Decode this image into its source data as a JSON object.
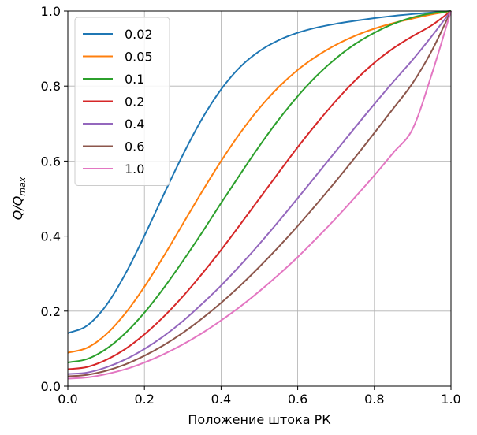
{
  "chart_data": {
    "type": "line",
    "title": "",
    "xlabel": "Положение штока РК",
    "ylabel": "Q/Q",
    "ylabel_subscript": "max",
    "xlim": [
      0.0,
      1.0
    ],
    "ylim": [
      0.0,
      1.0
    ],
    "xticks": [
      0.0,
      0.2,
      0.4,
      0.6,
      0.8,
      1.0
    ],
    "xtick_labels": [
      "0.0",
      "0.2",
      "0.4",
      "0.6",
      "0.8",
      "1.0"
    ],
    "yticks": [
      0.0,
      0.2,
      0.4,
      0.6,
      0.8,
      1.0
    ],
    "ytick_labels": [
      "0.0",
      "0.2",
      "0.4",
      "0.6",
      "0.8",
      "1.0"
    ],
    "grid": true,
    "legend_position": "top-left",
    "x": [
      0.0,
      0.05,
      0.1,
      0.15,
      0.2,
      0.25,
      0.3,
      0.35,
      0.4,
      0.45,
      0.5,
      0.55,
      0.6,
      0.65,
      0.7,
      0.75,
      0.8,
      0.85,
      0.9,
      0.95,
      1.0
    ],
    "series": [
      {
        "name": "0.02",
        "color": "#1f77b4",
        "values": [
          0.141,
          0.161,
          0.215,
          0.299,
          0.401,
          0.51,
          0.616,
          0.712,
          0.791,
          0.851,
          0.893,
          0.922,
          0.942,
          0.956,
          0.966,
          0.974,
          0.981,
          0.987,
          0.992,
          0.996,
          1.0
        ]
      },
      {
        "name": "0.05",
        "color": "#ff7f0e",
        "values": [
          0.089,
          0.102,
          0.138,
          0.194,
          0.265,
          0.346,
          0.432,
          0.518,
          0.6,
          0.675,
          0.741,
          0.797,
          0.843,
          0.88,
          0.91,
          0.934,
          0.953,
          0.968,
          0.98,
          0.991,
          1.0
        ]
      },
      {
        "name": "0.1",
        "color": "#2ca02c",
        "values": [
          0.063,
          0.072,
          0.099,
          0.141,
          0.196,
          0.261,
          0.333,
          0.409,
          0.488,
          0.565,
          0.64,
          0.71,
          0.773,
          0.828,
          0.874,
          0.912,
          0.942,
          0.966,
          0.983,
          0.994,
          1.0
        ]
      },
      {
        "name": "0.2",
        "color": "#d62728",
        "values": [
          0.045,
          0.051,
          0.07,
          0.099,
          0.138,
          0.185,
          0.239,
          0.299,
          0.363,
          0.431,
          0.5,
          0.569,
          0.637,
          0.701,
          0.761,
          0.815,
          0.862,
          0.901,
          0.933,
          0.962,
          1.0
        ]
      },
      {
        "name": "0.4",
        "color": "#9467bd",
        "values": [
          0.032,
          0.036,
          0.05,
          0.071,
          0.099,
          0.133,
          0.173,
          0.219,
          0.268,
          0.322,
          0.379,
          0.439,
          0.501,
          0.564,
          0.627,
          0.69,
          0.752,
          0.812,
          0.87,
          0.933,
          1.0
        ]
      },
      {
        "name": "0.6",
        "color": "#8c564b",
        "values": [
          0.026,
          0.03,
          0.041,
          0.058,
          0.081,
          0.109,
          0.142,
          0.18,
          0.222,
          0.268,
          0.318,
          0.371,
          0.427,
          0.486,
          0.547,
          0.61,
          0.675,
          0.741,
          0.808,
          0.894,
          1.0
        ]
      },
      {
        "name": "1.0",
        "color": "#e377c2",
        "values": [
          0.02,
          0.023,
          0.032,
          0.045,
          0.063,
          0.085,
          0.111,
          0.141,
          0.175,
          0.212,
          0.253,
          0.297,
          0.344,
          0.395,
          0.448,
          0.504,
          0.562,
          0.623,
          0.686,
          0.832,
          1.0
        ]
      }
    ]
  }
}
